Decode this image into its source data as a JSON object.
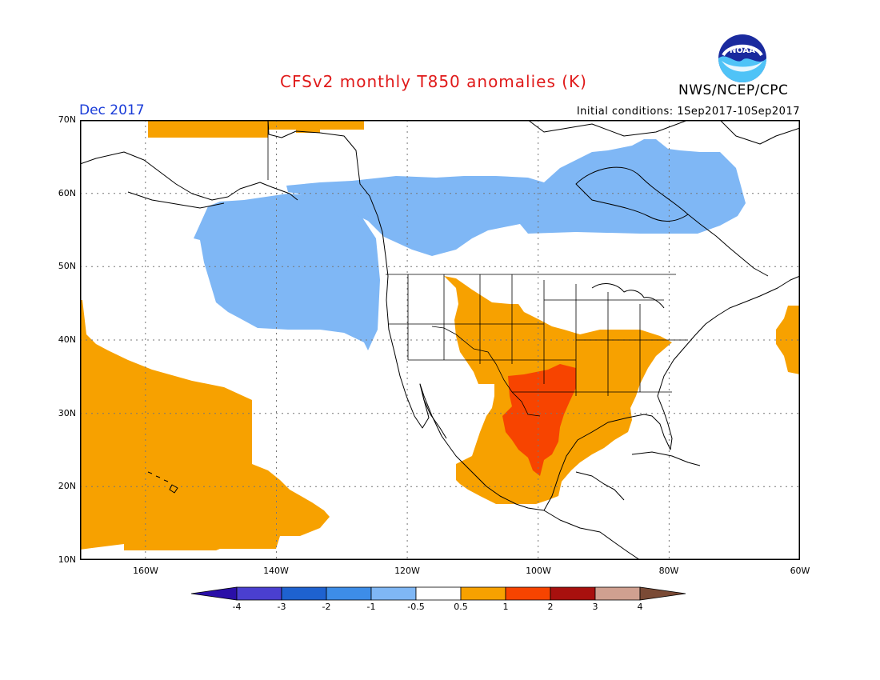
{
  "header": {
    "title": "CFSv2 monthly T850 anomalies (K)",
    "agency": "NWS/NCEP/CPC",
    "month": "Dec 2017",
    "initial_conditions": "Initial conditions: 1Sep2017-10Sep2017",
    "logo_text": "NOAA"
  },
  "map": {
    "lat_range": [
      10,
      70
    ],
    "lon_range": [
      -170,
      -60
    ],
    "lat_ticks": [
      "10N",
      "20N",
      "30N",
      "40N",
      "50N",
      "60N",
      "70N"
    ],
    "lon_ticks": [
      "160W",
      "140W",
      "120W",
      "100W",
      "80W",
      "60W"
    ],
    "grid": "dotted",
    "anomaly_regions": [
      {
        "name": "north-pacific-negative",
        "value": -0.5,
        "color": "#7fb7f5"
      },
      {
        "name": "canada-negative",
        "value": -0.5,
        "color": "#7fb7f5"
      },
      {
        "name": "arctic-positive",
        "value": 0.5,
        "color": "#f7a100"
      },
      {
        "name": "central-pacific-positive",
        "value": 0.5,
        "color": "#f7a100"
      },
      {
        "name": "us-mexico-positive",
        "value": 0.5,
        "color": "#f7a100"
      },
      {
        "name": "texas-positive-core",
        "value": 1,
        "color": "#f74400"
      },
      {
        "name": "atlantic-positive",
        "value": 0.5,
        "color": "#f7a100"
      }
    ]
  },
  "colorbar": {
    "labels": [
      "-4",
      "-3",
      "-2",
      "-1",
      "-0.5",
      "0.5",
      "1",
      "2",
      "3",
      "4"
    ],
    "colors": [
      "#2a0fa8",
      "#4a3fd0",
      "#1e62d0",
      "#3d8de8",
      "#7fb7f5",
      "#ffffff",
      "#f7a100",
      "#f74400",
      "#a8100e",
      "#d0a090",
      "#7a4a35"
    ]
  }
}
